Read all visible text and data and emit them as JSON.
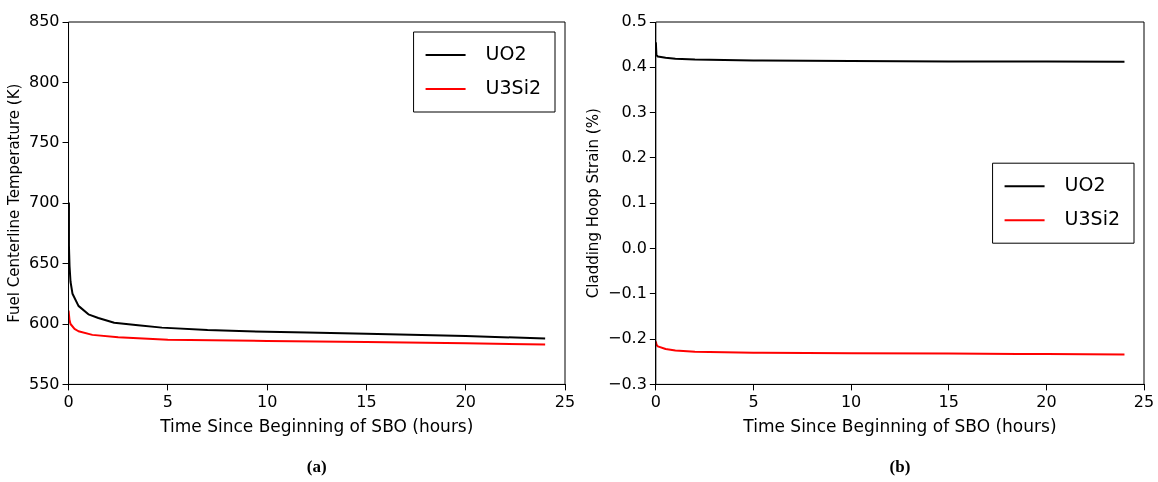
{
  "chart_data": [
    {
      "type": "line",
      "xlabel": "Time Since Beginning of SBO (hours)",
      "ylabel": "Fuel Centerline Temperature (K)",
      "annotations": [
        "(a)"
      ],
      "xlim": [
        0,
        25
      ],
      "xticks": [
        0,
        5,
        10,
        15,
        20,
        25
      ],
      "ylim": [
        550,
        850
      ],
      "yticks": [
        550,
        600,
        650,
        700,
        750,
        800,
        850
      ],
      "legend": "top right",
      "grid": false,
      "line_style": "solid",
      "marker": "none",
      "series": [
        {
          "name": "UO2",
          "color": "#000000",
          "x": [
            0,
            0.02,
            0.05,
            0.1,
            0.2,
            0.5,
            1.0,
            1.5,
            2.3,
            3.5,
            4.7,
            7,
            9,
            12,
            15,
            20,
            24
          ],
          "values": [
            700,
            665,
            648,
            635,
            625,
            615,
            608,
            605,
            601,
            599,
            597,
            595,
            594,
            593,
            592,
            590,
            588
          ]
        },
        {
          "name": "U3Si2",
          "color": "#ff0000",
          "x": [
            0,
            0.05,
            0.1,
            0.3,
            0.5,
            1.2,
            2.5,
            5,
            10,
            15,
            20,
            24
          ],
          "values": [
            611,
            603,
            600,
            596,
            594,
            591,
            589,
            587,
            586,
            585,
            584,
            583
          ]
        }
      ]
    },
    {
      "type": "line",
      "xlabel": "Time Since Beginning of SBO (hours)",
      "ylabel": "Cladding Hoop Strain (%)",
      "annotations": [
        "(b)"
      ],
      "xlim": [
        0,
        25
      ],
      "xticks": [
        0,
        5,
        10,
        15,
        20,
        25
      ],
      "ylim": [
        -0.3,
        0.5
      ],
      "yticks": [
        {
          "value": -0.3,
          "label": "−0.3"
        },
        {
          "value": -0.2,
          "label": "−0.2"
        },
        {
          "value": -0.1,
          "label": "−0.1"
        },
        {
          "value": 0,
          "label": "0.0"
        },
        0.1,
        0.2,
        0.3,
        0.4,
        0.5
      ],
      "legend": "right",
      "grid": false,
      "line_style": "solid",
      "marker": "none",
      "series": [
        {
          "name": "UO2",
          "color": "#000000",
          "x": [
            0,
            0.03,
            0.1,
            0.5,
            1,
            2,
            5,
            10,
            15,
            20,
            24
          ],
          "values": [
            0.455,
            0.427,
            0.424,
            0.421,
            0.419,
            0.417,
            0.415,
            0.414,
            0.413,
            0.413,
            0.412
          ]
        },
        {
          "name": "U3Si2",
          "color": "#ff0000",
          "x": [
            0,
            0.03,
            0.1,
            0.5,
            1,
            2,
            5,
            10,
            15,
            20,
            24
          ],
          "values": [
            -0.205,
            -0.212,
            -0.216,
            -0.222,
            -0.225,
            -0.228,
            -0.23,
            -0.231,
            -0.232,
            -0.233,
            -0.234
          ]
        }
      ]
    }
  ]
}
